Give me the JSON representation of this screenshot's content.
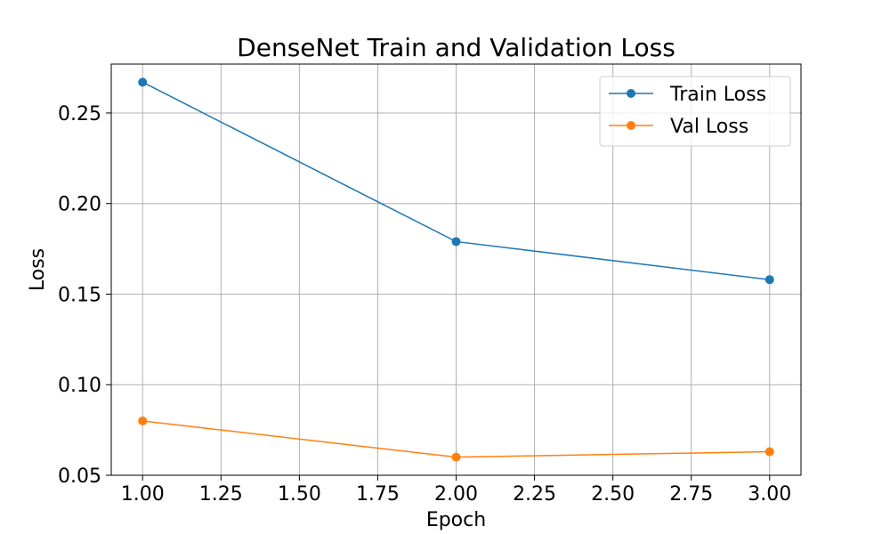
{
  "chart_data": {
    "type": "line",
    "title": "DenseNet Train and Validation Loss",
    "xlabel": "Epoch",
    "ylabel": "Loss",
    "x": [
      1,
      2,
      3
    ],
    "xlim": [
      0.9,
      3.1
    ],
    "ylim": [
      0.05,
      0.277
    ],
    "xticks": [
      1.0,
      1.25,
      1.5,
      1.75,
      2.0,
      2.25,
      2.5,
      2.75,
      3.0
    ],
    "xtick_labels": [
      "1.00",
      "1.25",
      "1.50",
      "1.75",
      "2.00",
      "2.25",
      "2.50",
      "2.75",
      "3.00"
    ],
    "yticks": [
      0.05,
      0.1,
      0.15,
      0.2,
      0.25
    ],
    "ytick_labels": [
      "0.05",
      "0.10",
      "0.15",
      "0.20",
      "0.25"
    ],
    "grid": true,
    "legend_position": "top-right",
    "series": [
      {
        "name": "Train Loss",
        "values": [
          0.267,
          0.179,
          0.158
        ],
        "color": "#1f77b4",
        "marker": "circle"
      },
      {
        "name": "Val Loss",
        "values": [
          0.08,
          0.06,
          0.063
        ],
        "color": "#ff7f0e",
        "marker": "circle"
      }
    ]
  }
}
